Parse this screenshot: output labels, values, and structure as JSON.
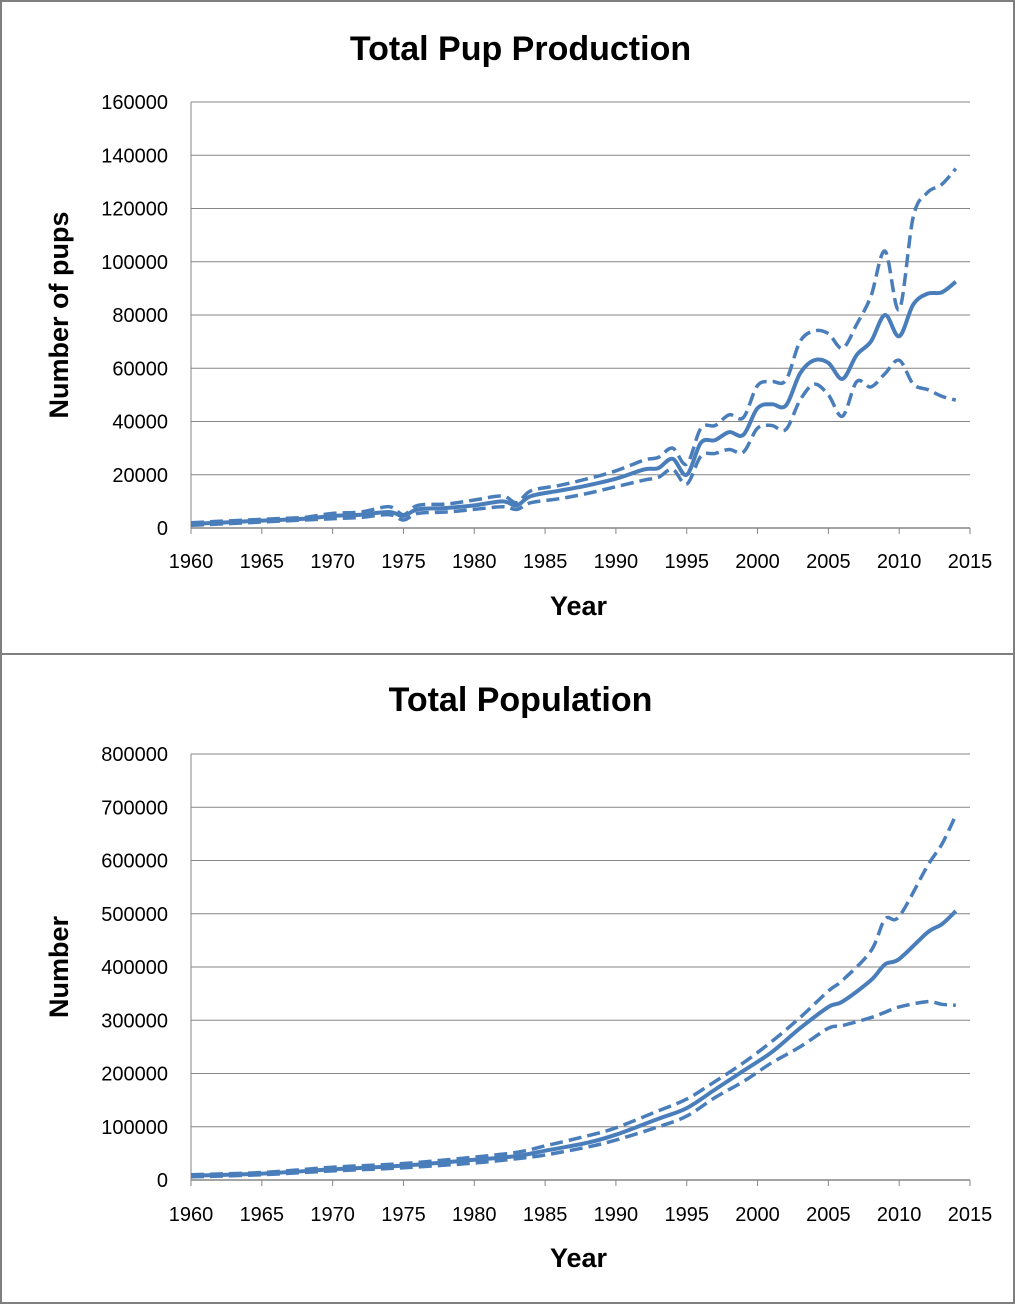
{
  "colors": {
    "series": "#4a7ebb",
    "grid": "#868686"
  },
  "chart_data": [
    {
      "type": "line",
      "title": "Total Pup Production",
      "xlabel": "Year",
      "ylabel": "Number of pups",
      "xlim": [
        1960,
        2015
      ],
      "ylim": [
        0,
        160000
      ],
      "xticks": [
        1960,
        1965,
        1970,
        1975,
        1980,
        1985,
        1990,
        1995,
        2000,
        2005,
        2010,
        2015
      ],
      "yticks": [
        0,
        20000,
        40000,
        60000,
        80000,
        100000,
        120000,
        140000,
        160000
      ],
      "grid": true,
      "legend": "none",
      "series": [
        {
          "style": "solid",
          "x": [
            1960,
            1962,
            1964,
            1966,
            1968,
            1970,
            1972,
            1974,
            1975,
            1976,
            1978,
            1980,
            1982,
            1983,
            1984,
            1986,
            1988,
            1990,
            1992,
            1993,
            1994,
            1995,
            1996,
            1997,
            1998,
            1999,
            2000,
            2001,
            2002,
            2003,
            2004,
            2005,
            2006,
            2007,
            2008,
            2009,
            2010,
            2011,
            2012,
            2013,
            2014
          ],
          "y": [
            1500,
            2000,
            2500,
            3000,
            3500,
            4500,
            5000,
            6000,
            4500,
            7000,
            7500,
            8500,
            10000,
            8500,
            12000,
            14000,
            16000,
            18500,
            22000,
            22500,
            26000,
            20000,
            32000,
            33000,
            36000,
            35000,
            45000,
            46500,
            46000,
            58000,
            63000,
            62000,
            56000,
            65000,
            70000,
            80000,
            72000,
            84000,
            88000,
            88500,
            92500
          ]
        },
        {
          "style": "dashed",
          "x": [
            1960,
            1962,
            1964,
            1966,
            1968,
            1970,
            1972,
            1974,
            1975,
            1976,
            1978,
            1980,
            1982,
            1983,
            1984,
            1986,
            1988,
            1990,
            1992,
            1993,
            1994,
            1995,
            1996,
            1997,
            1998,
            1999,
            2000,
            2001,
            2002,
            2003,
            2004,
            2005,
            2006,
            2007,
            2008,
            2009,
            2010,
            2011,
            2012,
            2013,
            2014
          ],
          "y": [
            2000,
            2500,
            3000,
            3500,
            4000,
            5500,
            6000,
            8000,
            5000,
            8500,
            9000,
            10500,
            12000,
            9500,
            14000,
            16000,
            18500,
            21500,
            25500,
            26500,
            30000,
            24000,
            37500,
            38500,
            42500,
            41500,
            53500,
            55000,
            55500,
            70000,
            74000,
            73000,
            67500,
            76500,
            87000,
            104000,
            82000,
            117000,
            126000,
            129000,
            135000
          ]
        },
        {
          "style": "dashed",
          "x": [
            1960,
            1962,
            1964,
            1966,
            1968,
            1970,
            1972,
            1974,
            1975,
            1976,
            1978,
            1980,
            1982,
            1983,
            1984,
            1986,
            1988,
            1990,
            1992,
            1993,
            1994,
            1995,
            1996,
            1997,
            1998,
            1999,
            2000,
            2001,
            2002,
            2003,
            2004,
            2005,
            2006,
            2007,
            2008,
            2009,
            2010,
            2011,
            2012,
            2013,
            2014
          ],
          "y": [
            1000,
            1500,
            2000,
            2500,
            3000,
            3500,
            4000,
            5000,
            3000,
            5500,
            6000,
            7000,
            8000,
            7000,
            9500,
            11000,
            13000,
            15500,
            18000,
            19000,
            22000,
            16500,
            27000,
            28000,
            29500,
            28500,
            37500,
            38500,
            37000,
            48000,
            54000,
            50000,
            42000,
            55000,
            53000,
            58000,
            63000,
            54000,
            52000,
            49500,
            48000
          ]
        }
      ]
    },
    {
      "type": "line",
      "title": "Total Population",
      "xlabel": "Year",
      "ylabel": "Number",
      "xlim": [
        1960,
        2015
      ],
      "ylim": [
        0,
        800000
      ],
      "xticks": [
        1960,
        1965,
        1970,
        1975,
        1980,
        1985,
        1990,
        1995,
        2000,
        2005,
        2010,
        2015
      ],
      "yticks": [
        0,
        100000,
        200000,
        300000,
        400000,
        500000,
        600000,
        700000,
        800000
      ],
      "grid": true,
      "legend": "none",
      "series": [
        {
          "style": "solid",
          "x": [
            1960,
            1965,
            1970,
            1975,
            1980,
            1983,
            1985,
            1988,
            1990,
            1993,
            1995,
            1997,
            1999,
            2001,
            2003,
            2005,
            2006,
            2008,
            2009,
            2010,
            2012,
            2013,
            2014
          ],
          "y": [
            8000,
            12000,
            20000,
            27000,
            38000,
            45000,
            55000,
            70000,
            85000,
            115000,
            135000,
            170000,
            205000,
            240000,
            285000,
            325000,
            335000,
            375000,
            405000,
            415000,
            465000,
            480000,
            505000
          ]
        },
        {
          "style": "dashed",
          "x": [
            1960,
            1965,
            1970,
            1975,
            1980,
            1983,
            1985,
            1988,
            1990,
            1993,
            1995,
            1997,
            1999,
            2001,
            2003,
            2005,
            2006,
            2008,
            2009,
            2010,
            2012,
            2013,
            2014
          ],
          "y": [
            10000,
            14000,
            24000,
            31000,
            43000,
            52000,
            64000,
            83000,
            98000,
            130000,
            152000,
            185000,
            220000,
            260000,
            305000,
            355000,
            375000,
            430000,
            490000,
            495000,
            590000,
            630000,
            685000
          ]
        },
        {
          "style": "dashed",
          "x": [
            1960,
            1965,
            1970,
            1975,
            1980,
            1983,
            1985,
            1988,
            1990,
            1993,
            1995,
            1997,
            1999,
            2001,
            2003,
            2005,
            2006,
            2008,
            2009,
            2010,
            2012,
            2013,
            2014
          ],
          "y": [
            6000,
            10000,
            17000,
            23000,
            32000,
            40000,
            47000,
            62000,
            75000,
            100000,
            120000,
            155000,
            185000,
            220000,
            250000,
            285000,
            290000,
            305000,
            315000,
            325000,
            335000,
            330000,
            328000
          ]
        }
      ]
    }
  ]
}
